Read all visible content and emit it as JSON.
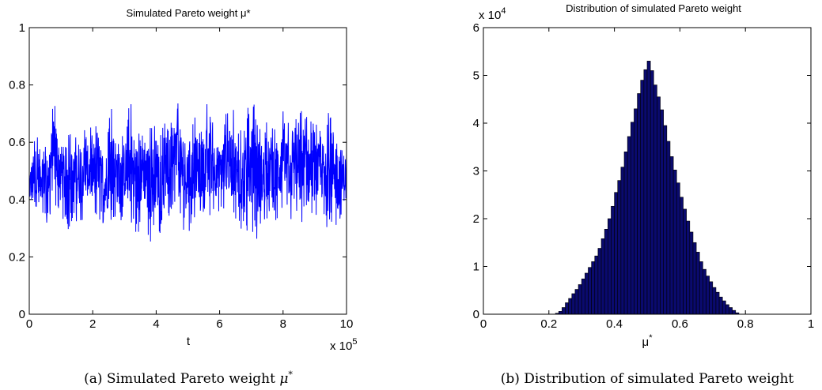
{
  "chart_data": [
    {
      "type": "line",
      "title": "Simulated Pareto weight μ*",
      "xlabel": "t",
      "ylabel": "",
      "x_multiplier": "x 10^5",
      "xlim": [
        0,
        10
      ],
      "ylim": [
        0,
        1
      ],
      "xticks": [
        "0",
        "2",
        "4",
        "6",
        "8",
        "10"
      ],
      "yticks": [
        "0",
        "0.2",
        "0.4",
        "0.6",
        "0.8",
        "1"
      ],
      "grid": false,
      "series": [
        {
          "color": "#0000ff",
          "x": [
            0.0,
            0.2,
            0.4,
            0.6,
            0.8,
            1.0,
            1.2,
            1.4,
            1.6,
            1.8,
            2.0,
            2.2,
            2.4,
            2.6,
            2.8,
            3.0,
            3.2,
            3.4,
            3.6,
            3.8,
            4.0,
            4.2,
            4.4,
            4.6,
            4.8,
            5.0,
            5.2,
            5.4,
            5.6,
            5.8,
            6.0,
            6.2,
            6.4,
            6.6,
            6.8,
            7.0,
            7.2,
            7.4,
            7.6,
            7.8,
            8.0,
            8.2,
            8.4,
            8.6,
            8.8,
            9.0,
            9.2,
            9.4,
            9.6,
            9.8,
            10.0
          ],
          "y_band_high": [
            0.55,
            0.65,
            0.63,
            0.68,
            0.77,
            0.65,
            0.66,
            0.62,
            0.7,
            0.64,
            0.68,
            0.66,
            0.63,
            0.72,
            0.68,
            0.66,
            0.75,
            0.67,
            0.73,
            0.65,
            0.7,
            0.66,
            0.68,
            0.78,
            0.72,
            0.68,
            0.7,
            0.66,
            0.75,
            0.68,
            0.64,
            0.7,
            0.73,
            0.66,
            0.7,
            0.75,
            0.72,
            0.65,
            0.7,
            0.68,
            0.73,
            0.66,
            0.7,
            0.76,
            0.7,
            0.67,
            0.66,
            0.7,
            0.74,
            0.68,
            0.58
          ],
          "y_band_low": [
            0.35,
            0.3,
            0.35,
            0.3,
            0.37,
            0.35,
            0.28,
            0.33,
            0.3,
            0.36,
            0.31,
            0.33,
            0.27,
            0.33,
            0.3,
            0.34,
            0.28,
            0.26,
            0.32,
            0.24,
            0.3,
            0.27,
            0.32,
            0.35,
            0.3,
            0.28,
            0.33,
            0.34,
            0.3,
            0.36,
            0.33,
            0.37,
            0.32,
            0.3,
            0.26,
            0.28,
            0.24,
            0.31,
            0.33,
            0.3,
            0.35,
            0.33,
            0.32,
            0.27,
            0.3,
            0.32,
            0.34,
            0.27,
            0.31,
            0.24,
            0.4
          ]
        }
      ],
      "caption": "(a) Simulated Pareto weight μ*"
    },
    {
      "type": "bar",
      "title": "Distribution of simulated Pareto weight",
      "xlabel": "μ*",
      "ylabel": "",
      "y_multiplier": "x 10^4",
      "xlim": [
        0,
        1
      ],
      "ylim": [
        0,
        6
      ],
      "xticks": [
        "0",
        "0.2",
        "0.4",
        "0.6",
        "0.8",
        "1"
      ],
      "yticks": [
        "0",
        "1",
        "2",
        "3",
        "4",
        "5",
        "6"
      ],
      "grid": false,
      "bar_color": "#0a0a6e",
      "bin_width": 0.01,
      "bin_centers": [
        0.225,
        0.235,
        0.245,
        0.255,
        0.265,
        0.275,
        0.285,
        0.295,
        0.305,
        0.315,
        0.325,
        0.335,
        0.345,
        0.355,
        0.365,
        0.375,
        0.385,
        0.395,
        0.405,
        0.415,
        0.425,
        0.435,
        0.445,
        0.455,
        0.465,
        0.475,
        0.485,
        0.495,
        0.505,
        0.515,
        0.525,
        0.535,
        0.545,
        0.555,
        0.565,
        0.575,
        0.585,
        0.595,
        0.605,
        0.615,
        0.625,
        0.635,
        0.645,
        0.655,
        0.665,
        0.675,
        0.685,
        0.695,
        0.705,
        0.715,
        0.725,
        0.735,
        0.745,
        0.755,
        0.765,
        0.775
      ],
      "values": [
        0.02,
        0.06,
        0.14,
        0.24,
        0.33,
        0.43,
        0.52,
        0.62,
        0.74,
        0.86,
        0.98,
        1.1,
        1.22,
        1.38,
        1.58,
        1.78,
        2.0,
        2.26,
        2.55,
        2.8,
        3.08,
        3.4,
        3.72,
        4.02,
        4.3,
        4.62,
        4.9,
        5.12,
        5.3,
        5.1,
        4.8,
        4.55,
        4.28,
        3.95,
        3.62,
        3.3,
        3.02,
        2.75,
        2.45,
        2.2,
        1.95,
        1.72,
        1.5,
        1.3,
        1.1,
        0.94,
        0.8,
        0.68,
        0.56,
        0.46,
        0.36,
        0.28,
        0.2,
        0.14,
        0.08,
        0.03
      ],
      "caption": "(b) Distribution of simulated Pareto weight"
    }
  ]
}
